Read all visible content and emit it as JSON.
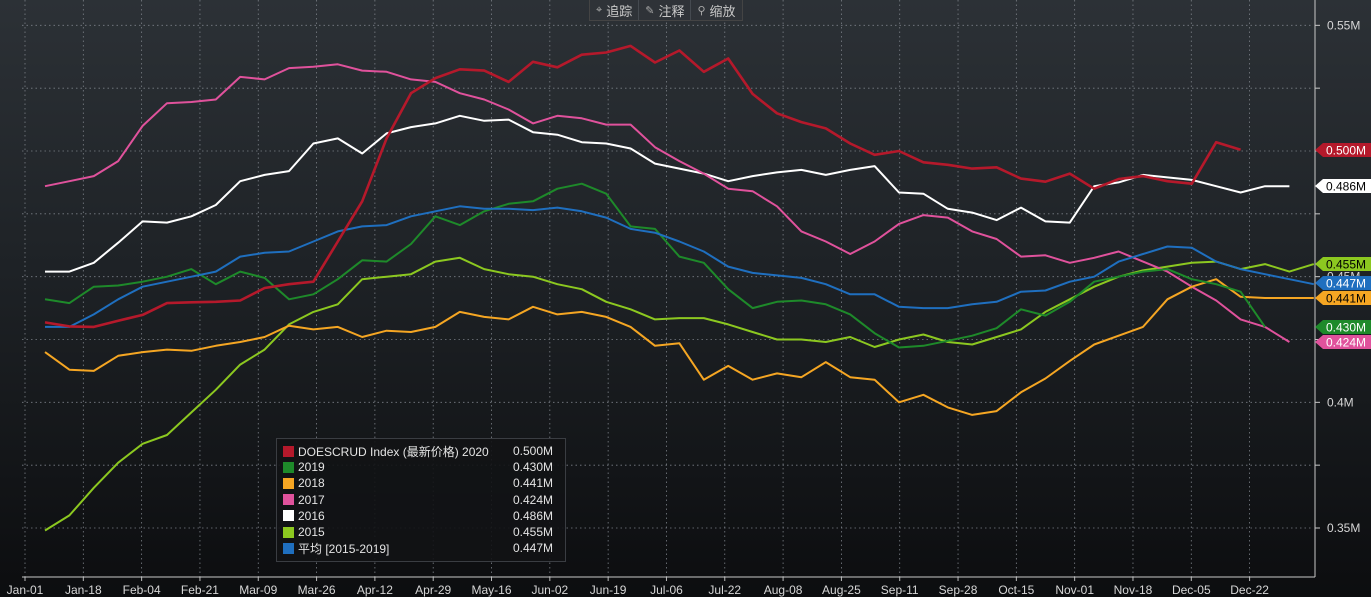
{
  "toolbar": {
    "items": [
      {
        "icon": "crosshair-icon",
        "glyph": "⌖",
        "label": "追踪"
      },
      {
        "icon": "pencil-icon",
        "glyph": "✎",
        "label": "注释"
      },
      {
        "icon": "zoom-icon",
        "glyph": "⚲",
        "label": "缩放"
      }
    ]
  },
  "chart_data": {
    "type": "line",
    "xlabels": [
      "Jan-01",
      "Jan-18",
      "Feb-04",
      "Feb-21",
      "Mar-09",
      "Mar-26",
      "Apr-12",
      "Apr-29",
      "May-16",
      "Jun-02",
      "Jun-19",
      "Jul-06",
      "Jul-22",
      "Aug-08",
      "Aug-25",
      "Sep-11",
      "Sep-28",
      "Oct-15",
      "Nov-01",
      "Nov-18",
      "Dec-05",
      "Dec-22"
    ],
    "ylim": [
      0.33,
      0.56
    ],
    "yticks": [
      {
        "value": 0.35,
        "label": "0.35M"
      },
      {
        "value": 0.4,
        "label": "0.4M"
      },
      {
        "value": 0.45,
        "label": "0.45M"
      },
      {
        "value": 0.5,
        "label": "0.5M"
      },
      {
        "value": 0.55,
        "label": "0.55M"
      }
    ],
    "grid": true,
    "legend_position": "bottom-left",
    "series": [
      {
        "name": "DOESCRUD Index (最新价格) 2020",
        "color": "#b5192b",
        "last": "0.500M",
        "values": [
          0.4318,
          0.4302,
          0.43,
          0.4325,
          0.4348,
          0.4395,
          0.4398,
          0.44,
          0.4405,
          0.4455,
          0.447,
          0.448,
          0.464,
          0.48,
          0.505,
          0.523,
          0.529,
          0.5325,
          0.532,
          0.5275,
          0.5355,
          0.5333,
          0.5383,
          0.5392,
          0.5418,
          0.5352,
          0.54,
          0.5315,
          0.5368,
          0.5227,
          0.515,
          0.5115,
          0.509,
          0.503,
          0.4985,
          0.5,
          0.4955,
          0.4945,
          0.493,
          0.4935,
          0.489,
          0.4878,
          0.491,
          0.485,
          0.4888,
          0.49,
          0.488,
          0.487,
          0.5035,
          0.5005
        ]
      },
      {
        "name": "2019",
        "color": "#1e8a2a",
        "last": "0.430M",
        "values": [
          0.441,
          0.4395,
          0.446,
          0.4465,
          0.448,
          0.45,
          0.453,
          0.447,
          0.452,
          0.4495,
          0.441,
          0.443,
          0.449,
          0.4565,
          0.456,
          0.463,
          0.474,
          0.4705,
          0.476,
          0.479,
          0.48,
          0.485,
          0.487,
          0.483,
          0.47,
          0.469,
          0.458,
          0.4555,
          0.445,
          0.4375,
          0.44,
          0.4405,
          0.439,
          0.435,
          0.4275,
          0.4218,
          0.4225,
          0.4245,
          0.4265,
          0.4295,
          0.437,
          0.4345,
          0.44,
          0.448,
          0.45,
          0.452,
          0.453,
          0.449,
          0.447,
          0.444,
          0.43
        ]
      },
      {
        "name": "2018",
        "color": "#f5a623",
        "last": "0.441M",
        "values": [
          0.42,
          0.413,
          0.4125,
          0.4185,
          0.42,
          0.421,
          0.4205,
          0.4225,
          0.424,
          0.426,
          0.4305,
          0.429,
          0.43,
          0.426,
          0.4285,
          0.428,
          0.43,
          0.436,
          0.434,
          0.433,
          0.438,
          0.435,
          0.436,
          0.434,
          0.43,
          0.4225,
          0.4235,
          0.409,
          0.4145,
          0.409,
          0.4115,
          0.41,
          0.416,
          0.41,
          0.409,
          0.4,
          0.403,
          0.398,
          0.395,
          0.3965,
          0.404,
          0.4095,
          0.4165,
          0.423,
          0.4265,
          0.43,
          0.441,
          0.446,
          0.449,
          0.442,
          0.4415,
          0.4415,
          0.4415
        ]
      },
      {
        "name": "2017",
        "color": "#e0529c",
        "last": "0.424M",
        "values": [
          0.486,
          0.488,
          0.49,
          0.496,
          0.51,
          0.519,
          0.5195,
          0.5205,
          0.5295,
          0.5285,
          0.533,
          0.5335,
          0.5345,
          0.532,
          0.5315,
          0.5285,
          0.5275,
          0.523,
          0.5205,
          0.5165,
          0.511,
          0.514,
          0.513,
          0.5105,
          0.5105,
          0.5015,
          0.496,
          0.491,
          0.485,
          0.484,
          0.478,
          0.468,
          0.464,
          0.459,
          0.464,
          0.471,
          0.4745,
          0.4735,
          0.468,
          0.465,
          0.458,
          0.4585,
          0.4555,
          0.4575,
          0.46,
          0.456,
          0.452,
          0.446,
          0.4405,
          0.433,
          0.43,
          0.424
        ]
      },
      {
        "name": "2016",
        "color": "#ffffff",
        "last": "0.486M",
        "values": [
          0.452,
          0.452,
          0.4555,
          0.4635,
          0.472,
          0.4715,
          0.474,
          0.4785,
          0.488,
          0.4905,
          0.492,
          0.503,
          0.505,
          0.499,
          0.507,
          0.5095,
          0.511,
          0.514,
          0.512,
          0.5125,
          0.5075,
          0.5065,
          0.5035,
          0.503,
          0.501,
          0.495,
          0.493,
          0.491,
          0.488,
          0.49,
          0.4915,
          0.4925,
          0.4905,
          0.4925,
          0.494,
          0.4835,
          0.483,
          0.477,
          0.4755,
          0.4725,
          0.4775,
          0.472,
          0.4715,
          0.486,
          0.4875,
          0.4905,
          0.4895,
          0.4885,
          0.486,
          0.4835,
          0.486,
          0.486
        ]
      },
      {
        "name": "2015",
        "color": "#8cc820",
        "last": "0.455M",
        "values": [
          0.349,
          0.355,
          0.366,
          0.376,
          0.3835,
          0.387,
          0.396,
          0.405,
          0.415,
          0.421,
          0.431,
          0.436,
          0.439,
          0.449,
          0.45,
          0.451,
          0.456,
          0.4575,
          0.453,
          0.451,
          0.45,
          0.447,
          0.445,
          0.44,
          0.437,
          0.433,
          0.4335,
          0.4335,
          0.431,
          0.428,
          0.425,
          0.425,
          0.424,
          0.426,
          0.422,
          0.425,
          0.427,
          0.424,
          0.423,
          0.426,
          0.429,
          0.436,
          0.441,
          0.446,
          0.45,
          0.4525,
          0.454,
          0.4555,
          0.456,
          0.453,
          0.455,
          0.452,
          0.455
        ]
      },
      {
        "name": "平均 [2015-2019]",
        "color": "#1f6fbf",
        "last": "0.447M",
        "values": [
          0.43,
          0.43,
          0.435,
          0.441,
          0.446,
          0.448,
          0.45,
          0.452,
          0.458,
          0.4595,
          0.46,
          0.464,
          0.468,
          0.47,
          0.4705,
          0.474,
          0.476,
          0.478,
          0.477,
          0.477,
          0.4765,
          0.4775,
          0.476,
          0.4735,
          0.469,
          0.4675,
          0.464,
          0.46,
          0.454,
          0.4515,
          0.4505,
          0.4495,
          0.447,
          0.443,
          0.443,
          0.438,
          0.4375,
          0.4375,
          0.439,
          0.44,
          0.444,
          0.4445,
          0.448,
          0.45,
          0.456,
          0.459,
          0.462,
          0.4615,
          0.456,
          0.453,
          0.451,
          0.449,
          0.447
        ]
      }
    ]
  }
}
